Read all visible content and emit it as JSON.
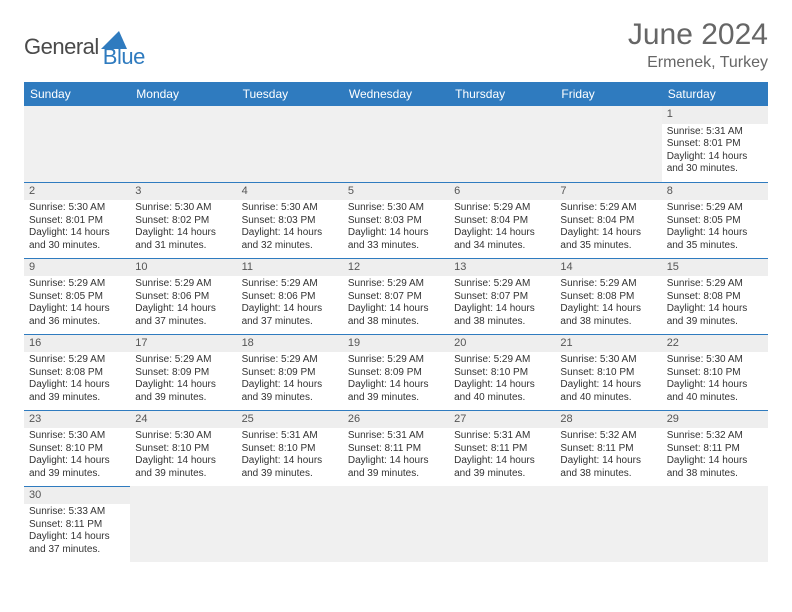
{
  "logo": {
    "text1": "General",
    "text2": "Blue"
  },
  "header": {
    "title": "June 2024",
    "location": "Ermenek, Turkey"
  },
  "colors": {
    "header_bg": "#2f7bbf",
    "header_text": "#ffffff",
    "daynum_bg": "#eeeeee",
    "blank_bg": "#f0f0f0",
    "border": "#2f7bbf",
    "body_text": "#333333",
    "title_text": "#666666"
  },
  "typography": {
    "title_fontsize": 30,
    "location_fontsize": 16,
    "header_fontsize": 12,
    "cell_fontsize": 10,
    "daynum_fontsize": 11
  },
  "calendar": {
    "columns": [
      "Sunday",
      "Monday",
      "Tuesday",
      "Wednesday",
      "Thursday",
      "Friday",
      "Saturday"
    ],
    "leading_blanks": 6,
    "days": [
      {
        "n": 1,
        "sunrise": "5:31 AM",
        "sunset": "8:01 PM",
        "daylight": "14 hours and 30 minutes."
      },
      {
        "n": 2,
        "sunrise": "5:30 AM",
        "sunset": "8:01 PM",
        "daylight": "14 hours and 30 minutes."
      },
      {
        "n": 3,
        "sunrise": "5:30 AM",
        "sunset": "8:02 PM",
        "daylight": "14 hours and 31 minutes."
      },
      {
        "n": 4,
        "sunrise": "5:30 AM",
        "sunset": "8:03 PM",
        "daylight": "14 hours and 32 minutes."
      },
      {
        "n": 5,
        "sunrise": "5:30 AM",
        "sunset": "8:03 PM",
        "daylight": "14 hours and 33 minutes."
      },
      {
        "n": 6,
        "sunrise": "5:29 AM",
        "sunset": "8:04 PM",
        "daylight": "14 hours and 34 minutes."
      },
      {
        "n": 7,
        "sunrise": "5:29 AM",
        "sunset": "8:04 PM",
        "daylight": "14 hours and 35 minutes."
      },
      {
        "n": 8,
        "sunrise": "5:29 AM",
        "sunset": "8:05 PM",
        "daylight": "14 hours and 35 minutes."
      },
      {
        "n": 9,
        "sunrise": "5:29 AM",
        "sunset": "8:05 PM",
        "daylight": "14 hours and 36 minutes."
      },
      {
        "n": 10,
        "sunrise": "5:29 AM",
        "sunset": "8:06 PM",
        "daylight": "14 hours and 37 minutes."
      },
      {
        "n": 11,
        "sunrise": "5:29 AM",
        "sunset": "8:06 PM",
        "daylight": "14 hours and 37 minutes."
      },
      {
        "n": 12,
        "sunrise": "5:29 AM",
        "sunset": "8:07 PM",
        "daylight": "14 hours and 38 minutes."
      },
      {
        "n": 13,
        "sunrise": "5:29 AM",
        "sunset": "8:07 PM",
        "daylight": "14 hours and 38 minutes."
      },
      {
        "n": 14,
        "sunrise": "5:29 AM",
        "sunset": "8:08 PM",
        "daylight": "14 hours and 38 minutes."
      },
      {
        "n": 15,
        "sunrise": "5:29 AM",
        "sunset": "8:08 PM",
        "daylight": "14 hours and 39 minutes."
      },
      {
        "n": 16,
        "sunrise": "5:29 AM",
        "sunset": "8:08 PM",
        "daylight": "14 hours and 39 minutes."
      },
      {
        "n": 17,
        "sunrise": "5:29 AM",
        "sunset": "8:09 PM",
        "daylight": "14 hours and 39 minutes."
      },
      {
        "n": 18,
        "sunrise": "5:29 AM",
        "sunset": "8:09 PM",
        "daylight": "14 hours and 39 minutes."
      },
      {
        "n": 19,
        "sunrise": "5:29 AM",
        "sunset": "8:09 PM",
        "daylight": "14 hours and 39 minutes."
      },
      {
        "n": 20,
        "sunrise": "5:29 AM",
        "sunset": "8:10 PM",
        "daylight": "14 hours and 40 minutes."
      },
      {
        "n": 21,
        "sunrise": "5:30 AM",
        "sunset": "8:10 PM",
        "daylight": "14 hours and 40 minutes."
      },
      {
        "n": 22,
        "sunrise": "5:30 AM",
        "sunset": "8:10 PM",
        "daylight": "14 hours and 40 minutes."
      },
      {
        "n": 23,
        "sunrise": "5:30 AM",
        "sunset": "8:10 PM",
        "daylight": "14 hours and 39 minutes."
      },
      {
        "n": 24,
        "sunrise": "5:30 AM",
        "sunset": "8:10 PM",
        "daylight": "14 hours and 39 minutes."
      },
      {
        "n": 25,
        "sunrise": "5:31 AM",
        "sunset": "8:10 PM",
        "daylight": "14 hours and 39 minutes."
      },
      {
        "n": 26,
        "sunrise": "5:31 AM",
        "sunset": "8:11 PM",
        "daylight": "14 hours and 39 minutes."
      },
      {
        "n": 27,
        "sunrise": "5:31 AM",
        "sunset": "8:11 PM",
        "daylight": "14 hours and 39 minutes."
      },
      {
        "n": 28,
        "sunrise": "5:32 AM",
        "sunset": "8:11 PM",
        "daylight": "14 hours and 38 minutes."
      },
      {
        "n": 29,
        "sunrise": "5:32 AM",
        "sunset": "8:11 PM",
        "daylight": "14 hours and 38 minutes."
      },
      {
        "n": 30,
        "sunrise": "5:33 AM",
        "sunset": "8:11 PM",
        "daylight": "14 hours and 37 minutes."
      }
    ],
    "labels": {
      "sunrise": "Sunrise:",
      "sunset": "Sunset:",
      "daylight": "Daylight:"
    }
  }
}
